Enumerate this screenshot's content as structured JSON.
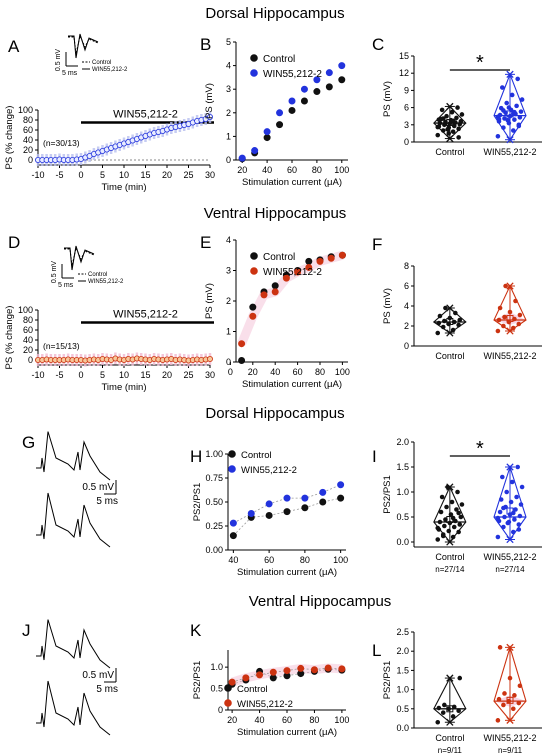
{
  "sections": {
    "dorsal_top": "Dorsal Hippocampus",
    "ventral_top": "Ventral Hippocampus",
    "dorsal_bottom": "Dorsal Hippocampus",
    "ventral_bottom": "Ventral Hippocampus"
  },
  "colors": {
    "control": "#111111",
    "win_dorsal": "#2233dd",
    "win_ventral": "#cc3311",
    "ventral_band": "#f2b8d0",
    "dorsal_band": "#b9c0f0"
  },
  "panel_letters": [
    "A",
    "B",
    "C",
    "D",
    "E",
    "F",
    "G",
    "H",
    "I",
    "J",
    "K",
    "L"
  ],
  "common": {
    "legend_control": "Control",
    "legend_win": "WIN55,212-2",
    "stim_xlabel": "Stimulation current (μA)",
    "time_xlabel": "Time (min)",
    "win_bar_label": "WIN55,212-2",
    "ps_change_ylabel": "PS (% change)",
    "ps_mv_ylabel": "PS (mV)",
    "ratio_ylabel": "PS2/PS1",
    "trace_scale_y": "0.5 mV",
    "trace_scale_x": "5 ms",
    "inset_control": "Control",
    "inset_win": "WIN55,212-2",
    "significance": "*"
  },
  "chart_data": [
    {
      "panel": "A",
      "type": "scatter",
      "xlabel": "Time (min)",
      "ylabel": "PS (% change)",
      "xlim": [
        -10,
        30
      ],
      "ylim": [
        -10,
        100
      ],
      "xticks": [
        "-10",
        "-5",
        "0",
        "5",
        "10",
        "15",
        "20",
        "25",
        "30"
      ],
      "yticks": [
        "0",
        "20",
        "40",
        "60",
        "80",
        "100"
      ],
      "annotation": "(n=30/13)",
      "bar_label": "WIN55,212-2",
      "series": [
        {
          "name": "WIN55,212-2",
          "x": [
            -10,
            -9,
            -8,
            -7,
            -6,
            -5,
            -4,
            -3,
            -2,
            -1,
            0,
            1,
            2,
            3,
            4,
            5,
            6,
            7,
            8,
            9,
            10,
            11,
            12,
            13,
            14,
            15,
            16,
            17,
            18,
            19,
            20,
            21,
            22,
            23,
            24,
            25,
            26,
            27,
            28,
            29,
            30
          ],
          "y": [
            0,
            0,
            0,
            0,
            0,
            1,
            0,
            0,
            0,
            1,
            2,
            5,
            8,
            12,
            15,
            18,
            21,
            24,
            27,
            30,
            33,
            36,
            39,
            42,
            45,
            48,
            51,
            54,
            56,
            58,
            61,
            64,
            66,
            68,
            70,
            72,
            75,
            78,
            80,
            82,
            86
          ]
        }
      ]
    },
    {
      "panel": "B",
      "type": "scatter",
      "xlabel": "Stimulation current (μA)",
      "ylabel": "PS (mV)",
      "xlim": [
        15,
        105
      ],
      "ylim": [
        0,
        5
      ],
      "xticks": [
        "20",
        "40",
        "60",
        "80",
        "100"
      ],
      "yticks": [
        "0",
        "1",
        "2",
        "3",
        "4",
        "5"
      ],
      "series": [
        {
          "name": "Control",
          "x": [
            20,
            30,
            40,
            50,
            60,
            70,
            80,
            90,
            100
          ],
          "y": [
            0.05,
            0.3,
            0.95,
            1.5,
            2.1,
            2.5,
            2.9,
            3.1,
            3.4
          ]
        },
        {
          "name": "WIN55,212-2",
          "x": [
            20,
            30,
            40,
            50,
            60,
            70,
            80,
            90,
            100
          ],
          "y": [
            0.08,
            0.4,
            1.2,
            2.0,
            2.5,
            3.0,
            3.4,
            3.7,
            4.0
          ]
        }
      ]
    },
    {
      "panel": "C",
      "type": "box",
      "ylabel": "PS (mV)",
      "ylim": [
        0,
        15
      ],
      "yticks": [
        "0",
        "3",
        "6",
        "9",
        "12",
        "15"
      ],
      "categories": [
        "Control",
        "WIN55,212-2"
      ],
      "significance": "*",
      "series": [
        {
          "name": "Control",
          "q1": 2.4,
          "median": 3.3,
          "q3": 4.2,
          "mean": 3.4,
          "whisker_low": 0.6,
          "whisker_high": 6.2,
          "points": [
            1.2,
            1.8,
            2.0,
            2.3,
            2.5,
            2.7,
            2.9,
            3.0,
            3.1,
            3.2,
            3.3,
            3.4,
            3.5,
            3.6,
            3.8,
            4.0,
            4.2,
            4.5,
            4.8,
            5.2,
            5.6,
            6.0,
            2.2,
            2.6,
            3.7,
            4.1,
            0.8,
            1.5,
            3.9,
            2.8
          ]
        },
        {
          "name": "WIN55,212-2",
          "q1": 3.6,
          "median": 4.6,
          "q3": 5.8,
          "mean": 4.9,
          "whisker_low": 0.4,
          "whisker_high": 11.8,
          "points": [
            1.0,
            2.0,
            2.5,
            3.0,
            3.3,
            3.6,
            3.9,
            4.1,
            4.3,
            4.5,
            4.7,
            4.9,
            5.1,
            5.3,
            5.6,
            5.9,
            6.3,
            6.8,
            7.4,
            8.2,
            9.5,
            11.0,
            3.8,
            4.4,
            5.0,
            5.5,
            2.8,
            6.0,
            4.0,
            5.2
          ]
        }
      ]
    },
    {
      "panel": "D",
      "type": "scatter",
      "xlabel": "Time (min)",
      "ylabel": "PS (% change)",
      "xlim": [
        -10,
        30
      ],
      "ylim": [
        -10,
        100
      ],
      "xticks": [
        "-10",
        "-5",
        "0",
        "5",
        "10",
        "15",
        "20",
        "25",
        "30"
      ],
      "yticks": [
        "0",
        "20",
        "40",
        "60",
        "80",
        "100"
      ],
      "annotation": "(n=15/13)",
      "bar_label": "WIN55,212-2",
      "series": [
        {
          "name": "WIN55,212-2",
          "x": [
            -10,
            -9,
            -8,
            -7,
            -6,
            -5,
            -4,
            -3,
            -2,
            -1,
            0,
            1,
            2,
            3,
            4,
            5,
            6,
            7,
            8,
            9,
            10,
            11,
            12,
            13,
            14,
            15,
            16,
            17,
            18,
            19,
            20,
            21,
            22,
            23,
            24,
            25,
            26,
            27,
            28,
            29,
            30
          ],
          "y": [
            0,
            0,
            1,
            0,
            0,
            0,
            0,
            1,
            0,
            0,
            0,
            -1,
            0,
            1,
            0,
            2,
            1,
            0,
            3,
            1,
            0,
            2,
            1,
            3,
            2,
            1,
            0,
            2,
            1,
            0,
            1,
            2,
            0,
            1,
            0,
            -1,
            0,
            1,
            0,
            1,
            2
          ]
        }
      ]
    },
    {
      "panel": "E",
      "type": "scatter",
      "xlabel": "Stimulation current (μA)",
      "ylabel": "PS (mV)",
      "xlim": [
        5,
        105
      ],
      "ylim": [
        0,
        4
      ],
      "xticks": [
        "0",
        "20",
        "40",
        "60",
        "80",
        "100"
      ],
      "yticks": [
        "0",
        "1",
        "2",
        "3",
        "4"
      ],
      "series": [
        {
          "name": "Control",
          "x": [
            10,
            20,
            30,
            40,
            50,
            60,
            70,
            80,
            90,
            100
          ],
          "y": [
            0.05,
            1.8,
            2.3,
            2.5,
            2.85,
            3.0,
            3.3,
            3.35,
            3.45,
            3.5
          ]
        },
        {
          "name": "WIN55,212-2",
          "x": [
            10,
            20,
            30,
            40,
            50,
            60,
            70,
            80,
            90,
            100
          ],
          "y": [
            0.6,
            1.5,
            2.2,
            2.3,
            2.75,
            2.95,
            3.1,
            3.3,
            3.4,
            3.5
          ]
        }
      ]
    },
    {
      "panel": "F",
      "type": "box",
      "ylabel": "PS (mV)",
      "ylim": [
        0,
        8
      ],
      "yticks": [
        "0",
        "2",
        "4",
        "6",
        "8"
      ],
      "categories": [
        "Control",
        "WIN55,212-2"
      ],
      "series": [
        {
          "name": "Control",
          "q1": 1.9,
          "median": 2.4,
          "q3": 2.9,
          "mean": 2.45,
          "whisker_low": 1.3,
          "whisker_high": 3.8,
          "points": [
            1.3,
            1.6,
            1.9,
            2.1,
            2.2,
            2.3,
            2.4,
            2.5,
            2.6,
            2.8,
            3.0,
            3.3,
            3.8
          ]
        },
        {
          "name": "WIN55,212-2",
          "q1": 2.1,
          "median": 2.6,
          "q3": 3.4,
          "mean": 2.75,
          "whisker_low": 1.5,
          "whisker_high": 6.0,
          "points": [
            1.5,
            1.8,
            2.0,
            2.2,
            2.4,
            2.6,
            2.7,
            2.9,
            3.1,
            3.4,
            3.8,
            4.5,
            6.0
          ]
        }
      ]
    },
    {
      "panel": "H",
      "type": "scatter",
      "xlabel": "Stimulation current (μA)",
      "ylabel": "PS2/PS1",
      "xlim": [
        37,
        103
      ],
      "ylim": [
        0,
        1.0
      ],
      "xticks": [
        "40",
        "60",
        "80",
        "100"
      ],
      "yticks": [
        "0.00",
        "0.25",
        "0.50",
        "0.75",
        "1.00"
      ],
      "series": [
        {
          "name": "Control",
          "x": [
            40,
            50,
            60,
            70,
            80,
            90,
            100
          ],
          "y": [
            0.15,
            0.34,
            0.36,
            0.4,
            0.44,
            0.5,
            0.54
          ]
        },
        {
          "name": "WIN55,212-2",
          "x": [
            40,
            50,
            60,
            70,
            80,
            90,
            100
          ],
          "y": [
            0.28,
            0.38,
            0.48,
            0.54,
            0.54,
            0.6,
            0.68
          ]
        }
      ]
    },
    {
      "panel": "I",
      "type": "box",
      "ylabel": "PS2/PS1",
      "ylim": [
        -0.1,
        2.0
      ],
      "yticks": [
        "0.0",
        "0.5",
        "1.0",
        "1.5",
        "2.0"
      ],
      "categories": [
        "Control",
        "WIN55,212-2"
      ],
      "category_n": [
        "n=27/14",
        "n=27/14"
      ],
      "significance": "*",
      "series": [
        {
          "name": "Control",
          "q1": 0.22,
          "median": 0.4,
          "q3": 0.7,
          "mean": 0.45,
          "whisker_low": 0.0,
          "whisker_high": 1.1,
          "points": [
            0.05,
            0.1,
            0.15,
            0.2,
            0.22,
            0.25,
            0.3,
            0.32,
            0.35,
            0.38,
            0.4,
            0.42,
            0.45,
            0.5,
            0.55,
            0.6,
            0.65,
            0.7,
            0.75,
            0.8,
            0.9,
            1.0,
            1.1,
            0.28,
            0.48,
            0.12,
            0.58
          ]
        },
        {
          "name": "WIN55,212-2",
          "q1": 0.35,
          "median": 0.5,
          "q3": 0.9,
          "mean": 0.62,
          "whisker_low": 0.05,
          "whisker_high": 1.5,
          "points": [
            0.1,
            0.2,
            0.3,
            0.35,
            0.4,
            0.42,
            0.45,
            0.5,
            0.52,
            0.55,
            0.6,
            0.65,
            0.7,
            0.75,
            0.8,
            0.85,
            0.9,
            1.0,
            1.1,
            1.2,
            1.3,
            1.5,
            0.38,
            0.48,
            0.58,
            0.68,
            0.25
          ]
        }
      ]
    },
    {
      "panel": "K",
      "type": "scatter",
      "xlabel": "Stimulation current (μA)",
      "ylabel": "PS2/PS1",
      "xlim": [
        17,
        103
      ],
      "ylim": [
        0,
        1.4
      ],
      "xticks": [
        "20",
        "40",
        "60",
        "80",
        "100"
      ],
      "yticks": [
        "0",
        "0.5",
        "1.0"
      ],
      "series": [
        {
          "name": "Control",
          "x": [
            20,
            30,
            40,
            50,
            60,
            70,
            80,
            90,
            100
          ],
          "y": [
            0.6,
            0.7,
            0.9,
            0.75,
            0.8,
            0.85,
            0.9,
            0.95,
            0.93
          ]
        },
        {
          "name": "WIN55,212-2",
          "x": [
            20,
            30,
            40,
            50,
            60,
            70,
            80,
            90,
            100
          ],
          "y": [
            0.65,
            0.75,
            0.82,
            0.88,
            0.92,
            0.97,
            0.94,
            0.98,
            0.96
          ]
        }
      ]
    },
    {
      "panel": "L",
      "type": "box",
      "ylabel": "PS2/PS1",
      "ylim": [
        0,
        2.5
      ],
      "yticks": [
        "0.0",
        "0.5",
        "1.0",
        "1.5",
        "2.0",
        "2.5"
      ],
      "categories": [
        "Control",
        "WIN55,212-2"
      ],
      "category_n": [
        "n=9/11",
        "n=9/11"
      ],
      "series": [
        {
          "name": "Control",
          "q1": 0.4,
          "median": 0.5,
          "q3": 0.55,
          "mean": 0.5,
          "whisker_low": 0.15,
          "whisker_high": 1.3,
          "points": [
            0.15,
            0.3,
            0.4,
            0.45,
            0.5,
            0.52,
            0.55,
            0.6,
            1.3
          ]
        },
        {
          "name": "WIN55,212-2",
          "q1": 0.55,
          "median": 0.7,
          "q3": 0.85,
          "mean": 0.72,
          "whisker_low": 0.2,
          "whisker_high": 2.1,
          "points": [
            0.2,
            0.5,
            0.6,
            0.65,
            0.7,
            0.75,
            0.85,
            0.9,
            1.1,
            1.3,
            2.1
          ]
        }
      ]
    }
  ]
}
